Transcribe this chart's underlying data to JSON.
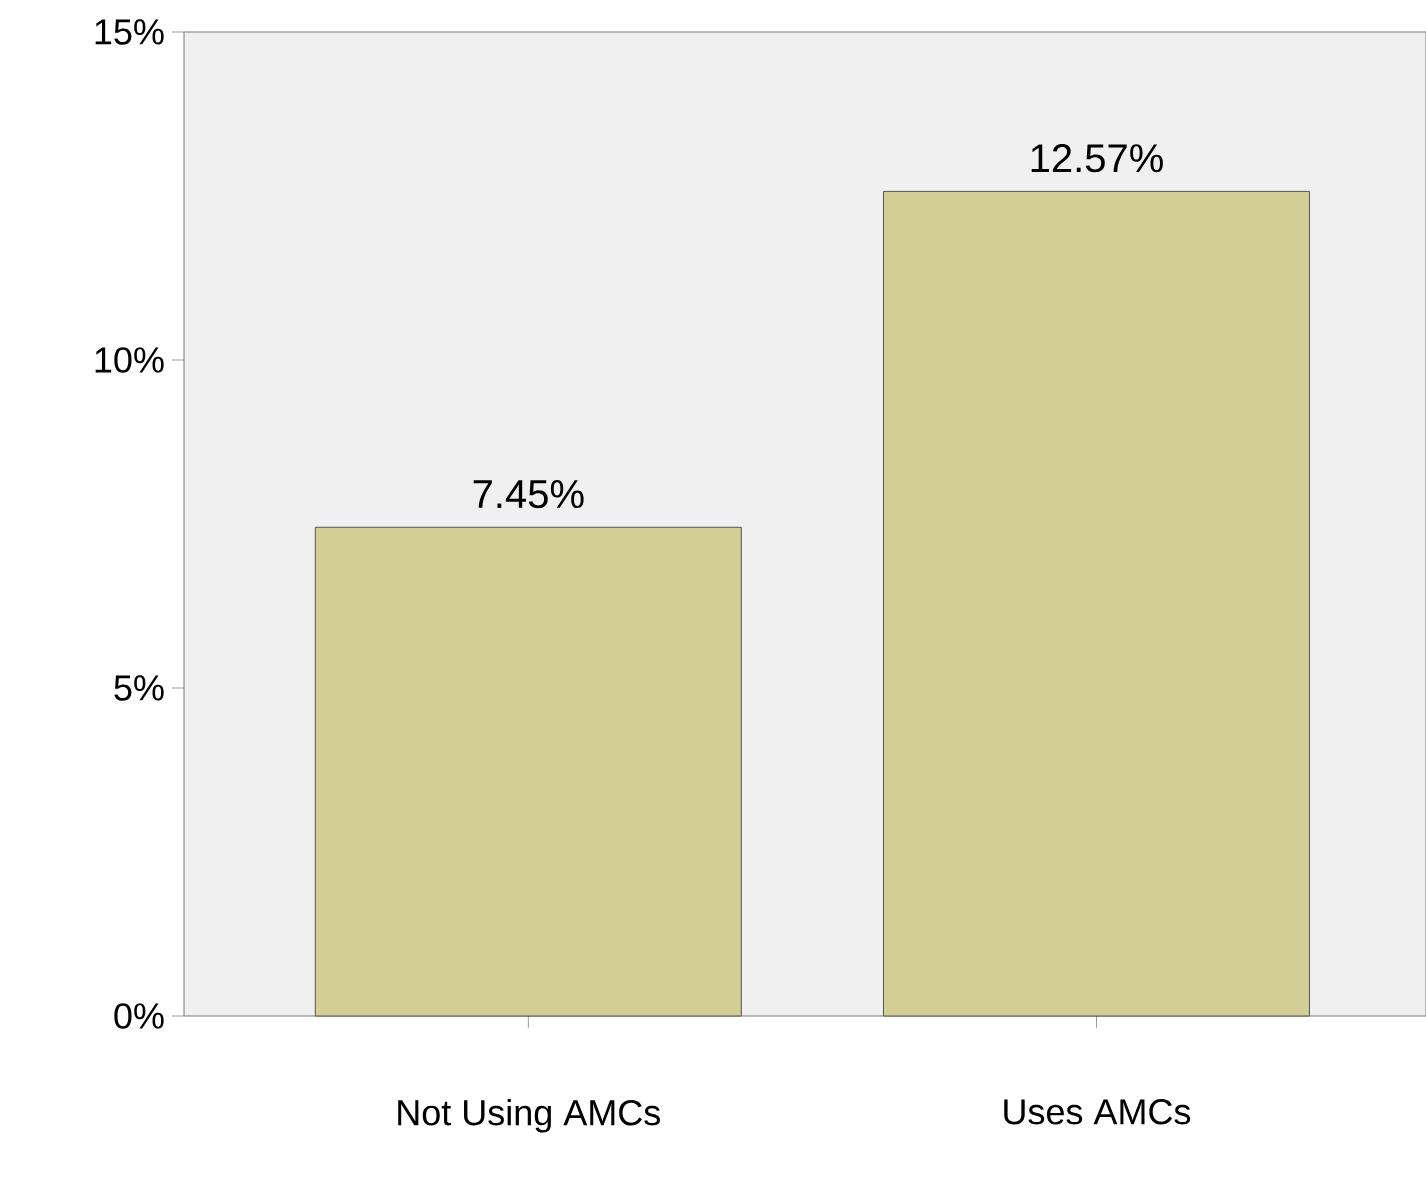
{
  "chart_data": {
    "type": "bar",
    "categories": [
      "Not Using AMCs",
      "Uses AMCs"
    ],
    "values": [
      7.45,
      12.57
    ],
    "color": "#d3cd96",
    "value_labels": [
      "7.45%",
      "12.57%"
    ],
    "ylim": [
      0,
      15
    ],
    "yticks": [
      {
        "value": 0,
        "label": "0%"
      },
      {
        "value": 5,
        "label": "5%"
      },
      {
        "value": 10,
        "label": "10%"
      },
      {
        "value": 15,
        "label": "15%"
      }
    ]
  }
}
